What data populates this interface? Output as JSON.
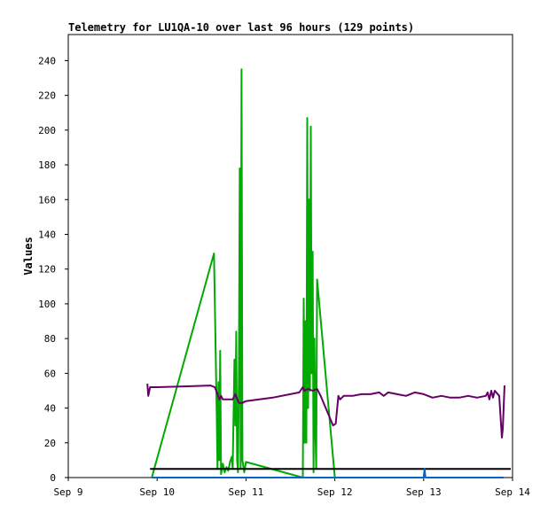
{
  "chart_data": {
    "type": "line",
    "title": "Telemetry for LU1QA-10 over last 96 hours (129 points)",
    "xlabel": "",
    "ylabel": "Values",
    "xlim": [
      "Sep 9",
      "Sep 14"
    ],
    "ylim": [
      0,
      255
    ],
    "x_ticks": [
      "Sep 9",
      "Sep 10",
      "Sep 11",
      "Sep 12",
      "Sep 13",
      "Sep 14"
    ],
    "y_ticks": [
      0,
      20,
      40,
      60,
      80,
      100,
      120,
      140,
      160,
      180,
      200,
      220,
      240
    ],
    "grid": false,
    "legend": "none",
    "x_unit": "days (Sep 9 = 0)",
    "series": [
      {
        "color": "#00aa00",
        "points": [
          [
            0.94,
            0
          ],
          [
            1.64,
            129
          ],
          [
            1.65,
            100
          ],
          [
            1.67,
            40
          ],
          [
            1.68,
            5
          ],
          [
            1.69,
            55
          ],
          [
            1.7,
            10
          ],
          [
            1.71,
            73
          ],
          [
            1.72,
            2
          ],
          [
            1.74,
            8
          ],
          [
            1.76,
            3
          ],
          [
            1.78,
            6
          ],
          [
            1.8,
            4
          ],
          [
            1.82,
            9
          ],
          [
            1.84,
            12
          ],
          [
            1.85,
            5
          ],
          [
            1.87,
            68
          ],
          [
            1.88,
            30
          ],
          [
            1.89,
            84
          ],
          [
            1.9,
            10
          ],
          [
            1.91,
            3
          ],
          [
            1.92,
            60
          ],
          [
            1.93,
            178
          ],
          [
            1.94,
            5
          ],
          [
            1.95,
            235
          ],
          [
            1.96,
            10
          ],
          [
            1.98,
            3
          ],
          [
            2.0,
            9
          ],
          [
            2.64,
            0
          ],
          [
            2.65,
            103
          ],
          [
            2.66,
            20
          ],
          [
            2.67,
            90
          ],
          [
            2.68,
            20
          ],
          [
            2.69,
            207
          ],
          [
            2.7,
            40
          ],
          [
            2.71,
            160
          ],
          [
            2.72,
            50
          ],
          [
            2.73,
            202
          ],
          [
            2.74,
            60
          ],
          [
            2.75,
            130
          ],
          [
            2.76,
            3
          ],
          [
            2.77,
            80
          ],
          [
            2.78,
            30
          ],
          [
            2.79,
            5
          ],
          [
            2.8,
            114
          ],
          [
            3.0,
            0
          ]
        ]
      },
      {
        "color": "#660066",
        "points": [
          [
            0.89,
            54
          ],
          [
            0.9,
            47
          ],
          [
            0.92,
            52
          ],
          [
            1.0,
            52
          ],
          [
            1.3,
            52.5
          ],
          [
            1.6,
            53
          ],
          [
            1.65,
            52
          ],
          [
            1.68,
            48
          ],
          [
            1.7,
            45
          ],
          [
            1.72,
            47
          ],
          [
            1.74,
            45
          ],
          [
            1.8,
            45
          ],
          [
            1.85,
            45
          ],
          [
            1.88,
            48
          ],
          [
            1.92,
            43
          ],
          [
            1.96,
            43
          ],
          [
            2.0,
            44
          ],
          [
            2.3,
            46
          ],
          [
            2.6,
            49
          ],
          [
            2.64,
            52
          ],
          [
            2.66,
            50
          ],
          [
            2.7,
            51
          ],
          [
            2.75,
            50
          ],
          [
            2.8,
            51
          ],
          [
            2.84,
            47
          ],
          [
            2.98,
            30
          ],
          [
            3.01,
            31
          ],
          [
            3.04,
            47
          ],
          [
            3.06,
            45
          ],
          [
            3.1,
            47
          ],
          [
            3.2,
            47
          ],
          [
            3.3,
            48
          ],
          [
            3.4,
            48
          ],
          [
            3.5,
            49
          ],
          [
            3.55,
            47
          ],
          [
            3.6,
            49
          ],
          [
            3.7,
            48
          ],
          [
            3.8,
            47
          ],
          [
            3.9,
            49
          ],
          [
            4.0,
            48
          ],
          [
            4.1,
            46
          ],
          [
            4.2,
            47
          ],
          [
            4.3,
            46
          ],
          [
            4.4,
            46
          ],
          [
            4.5,
            47
          ],
          [
            4.6,
            46
          ],
          [
            4.7,
            47
          ],
          [
            4.72,
            49
          ],
          [
            4.74,
            45
          ],
          [
            4.76,
            50
          ],
          [
            4.78,
            46
          ],
          [
            4.8,
            50
          ],
          [
            4.85,
            47
          ],
          [
            4.88,
            23
          ],
          [
            4.89,
            28
          ],
          [
            4.91,
            53
          ]
        ]
      },
      {
        "color": "#000000",
        "points": [
          [
            0.92,
            5
          ],
          [
            4.98,
            5
          ]
        ]
      },
      {
        "color": "#0066cc",
        "points": [
          [
            0.94,
            0
          ],
          [
            2.98,
            0
          ],
          [
            4.0,
            0
          ],
          [
            4.01,
            5
          ],
          [
            4.02,
            0
          ],
          [
            4.9,
            0
          ]
        ]
      }
    ]
  }
}
